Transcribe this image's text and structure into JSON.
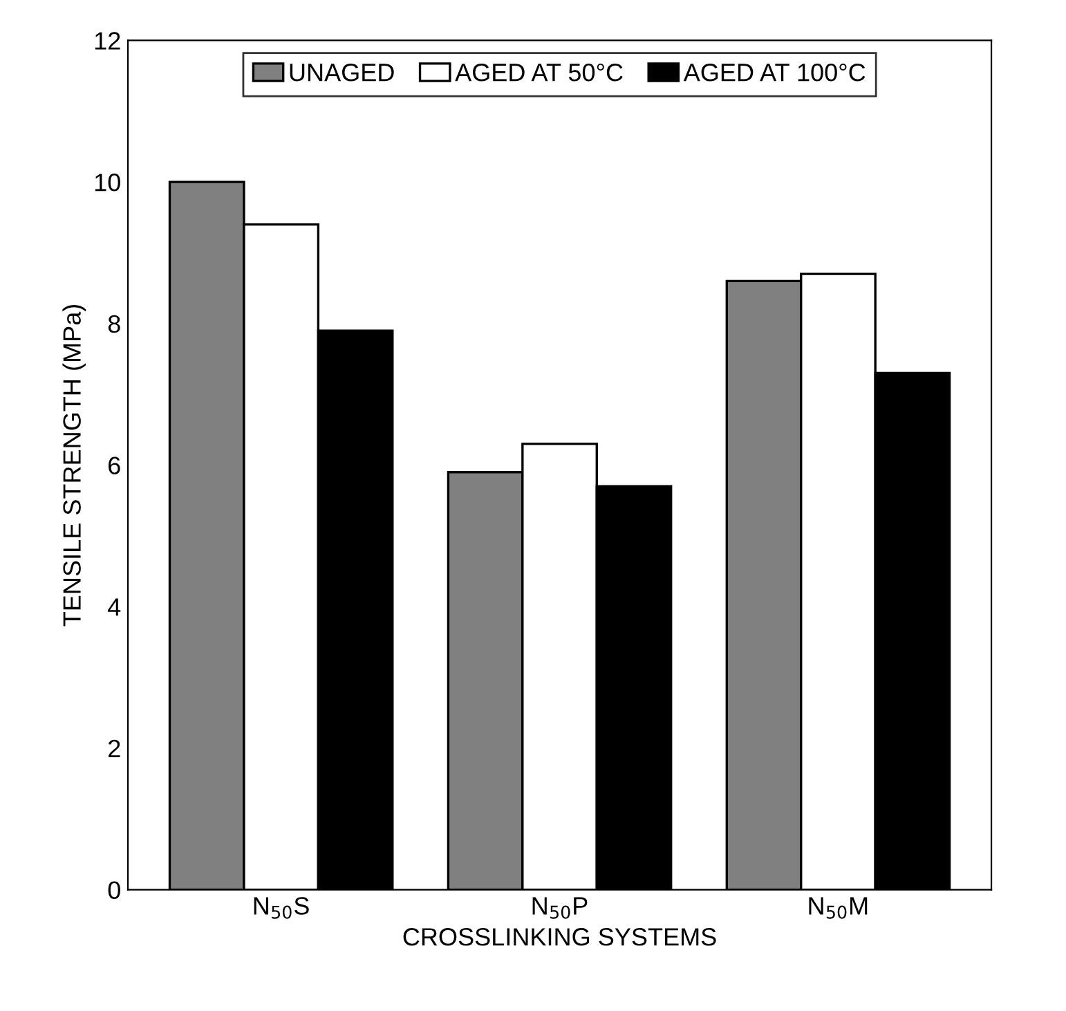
{
  "chart_data": {
    "type": "bar",
    "xlabel": "CROSSLINKING SYSTEMS",
    "ylabel": "TENSILE STRENGTH (MPa)",
    "categories": [
      "N$_{50}$S",
      "N$_{50}$P",
      "N$_{50}$M"
    ],
    "series": [
      {
        "name": "UNAGED",
        "color": "#808080",
        "values": [
          10.0,
          5.9,
          8.6
        ]
      },
      {
        "name": "AGED AT 50°C",
        "color": "#ffffff",
        "values": [
          9.4,
          6.3,
          8.7
        ]
      },
      {
        "name": "AGED AT 100°C",
        "color": "#000000",
        "values": [
          7.9,
          5.7,
          7.3
        ]
      }
    ],
    "ylim": [
      0,
      12
    ],
    "yticks": [
      0,
      2,
      4,
      6,
      8,
      10,
      12
    ],
    "legend": "top",
    "grid": false
  }
}
